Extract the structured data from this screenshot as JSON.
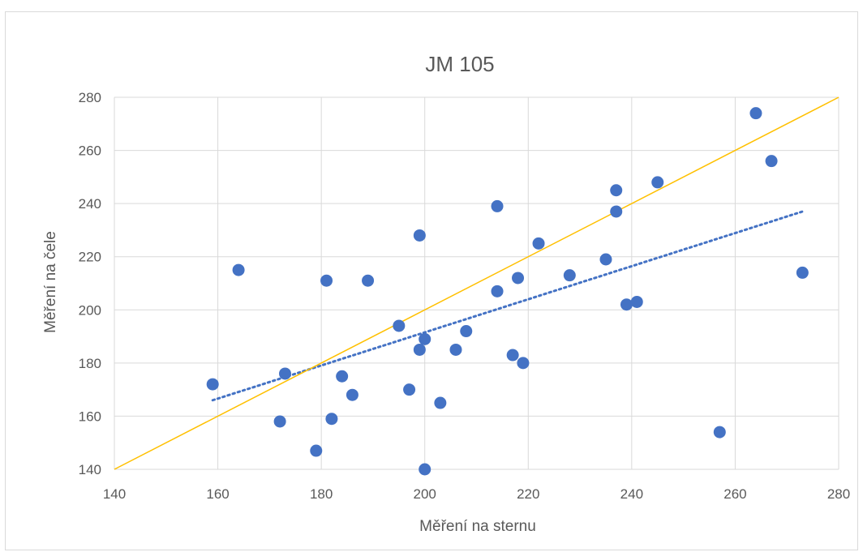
{
  "chart_data": {
    "type": "scatter",
    "title": "JM 105",
    "xlabel": "Měření na sternu",
    "ylabel": "Měření na čele",
    "xlim": [
      140,
      280
    ],
    "ylim": [
      140,
      280
    ],
    "x_ticks": [
      "140",
      "160",
      "180",
      "200",
      "220",
      "240",
      "260",
      "280"
    ],
    "y_ticks": [
      "140",
      "160",
      "180",
      "200",
      "220",
      "240",
      "260",
      "280"
    ],
    "grid": true,
    "legend": "none",
    "series": [
      {
        "type": "scatter",
        "color": "#4472c4",
        "points": [
          [
            159,
            172
          ],
          [
            164,
            215
          ],
          [
            172,
            158
          ],
          [
            173,
            176
          ],
          [
            179,
            147
          ],
          [
            181,
            211
          ],
          [
            182,
            159
          ],
          [
            184,
            175
          ],
          [
            186,
            168
          ],
          [
            189,
            211
          ],
          [
            195,
            194
          ],
          [
            197,
            170
          ],
          [
            199,
            185
          ],
          [
            199,
            228
          ],
          [
            200,
            189
          ],
          [
            200,
            140
          ],
          [
            203,
            165
          ],
          [
            206,
            185
          ],
          [
            208,
            192
          ],
          [
            214,
            239
          ],
          [
            214,
            207
          ],
          [
            217,
            183
          ],
          [
            218,
            212
          ],
          [
            219,
            180
          ],
          [
            222,
            225
          ],
          [
            228,
            213
          ],
          [
            235,
            219
          ],
          [
            237,
            245
          ],
          [
            237,
            237
          ],
          [
            239,
            202
          ],
          [
            241,
            203
          ],
          [
            245,
            248
          ],
          [
            257,
            154
          ],
          [
            264,
            274
          ],
          [
            267,
            256
          ],
          [
            273,
            214
          ]
        ]
      },
      {
        "type": "trendline",
        "style": "dotted",
        "color": "#4472c4",
        "points": [
          [
            159,
            166
          ],
          [
            273,
            237
          ]
        ]
      },
      {
        "type": "reference-line",
        "style": "solid",
        "color": "#ffc000",
        "points": [
          [
            140,
            140
          ],
          [
            280,
            280
          ]
        ]
      }
    ]
  }
}
